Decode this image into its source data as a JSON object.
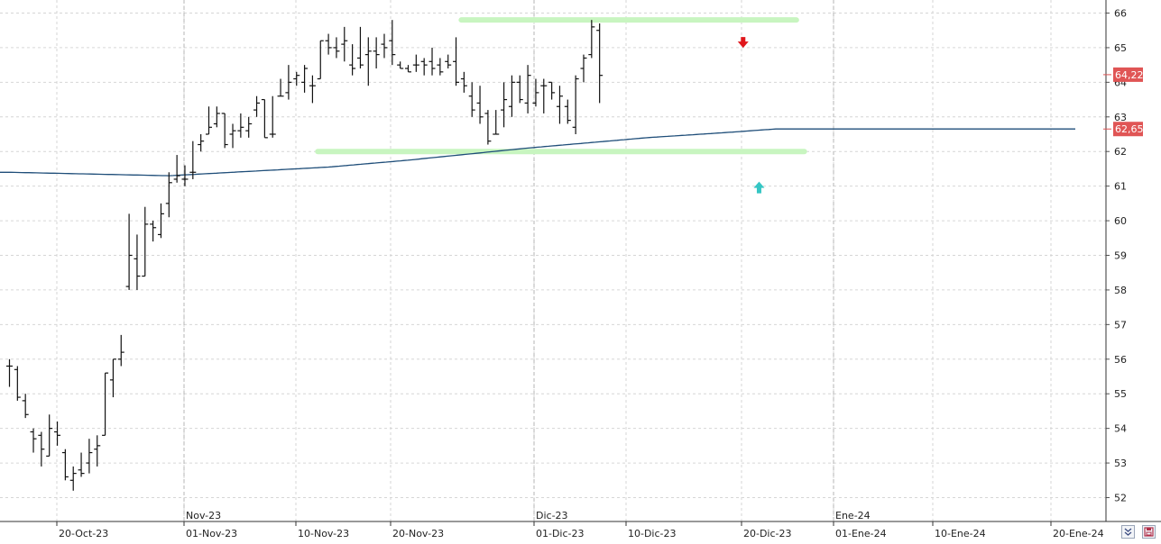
{
  "chart_data": {
    "type": "ohlc",
    "y_axis": {
      "position": "right",
      "range": [
        51.6,
        66.3
      ],
      "ticks": [
        "52",
        "53",
        "54",
        "55",
        "56",
        "57",
        "58",
        "59",
        "60",
        "61",
        "62",
        "63",
        "64",
        "65",
        "66"
      ]
    },
    "x_axis": {
      "date_ticks": [
        "20-Oct-23",
        "01-Nov-23",
        "10-Nov-23",
        "20-Nov-23",
        "01-Dic-23",
        "10-Dic-23",
        "20-Dic-23",
        "01-Ene-24",
        "10-Ene-24",
        "20-Ene-24"
      ],
      "month_labels": [
        "Nov-23",
        "Dic-23",
        "Ene-24"
      ]
    },
    "ohlc": [
      [
        55.8,
        56.0,
        55.2,
        55.8
      ],
      [
        55.7,
        55.8,
        54.8,
        54.9
      ],
      [
        54.8,
        55.0,
        54.3,
        54.4
      ],
      [
        53.9,
        54.0,
        53.3,
        53.7
      ],
      [
        53.8,
        53.9,
        52.9,
        53.4
      ],
      [
        53.2,
        54.4,
        53.2,
        54.0
      ],
      [
        53.9,
        54.2,
        53.5,
        53.8
      ],
      [
        53.3,
        53.4,
        52.5,
        52.6
      ],
      [
        52.5,
        52.9,
        52.2,
        52.7
      ],
      [
        52.8,
        53.3,
        52.6,
        52.7
      ],
      [
        53.0,
        53.7,
        52.7,
        53.3
      ],
      [
        53.4,
        53.8,
        52.9,
        53.5
      ],
      [
        53.8,
        55.6,
        53.8,
        55.6
      ],
      [
        55.4,
        56.0,
        54.9,
        56.0
      ],
      [
        56.0,
        56.7,
        55.8,
        56.2
      ],
      [
        58.1,
        60.2,
        58.0,
        59.0
      ],
      [
        58.9,
        59.6,
        58.0,
        58.4
      ],
      [
        58.4,
        60.4,
        58.4,
        59.9
      ],
      [
        59.9,
        60.0,
        59.4,
        59.8
      ],
      [
        59.6,
        60.5,
        59.5,
        60.2
      ],
      [
        60.5,
        61.4,
        60.1,
        61.1
      ],
      [
        61.2,
        61.9,
        61.1,
        61.3
      ],
      [
        61.2,
        61.6,
        61.0,
        61.2
      ],
      [
        61.4,
        62.3,
        61.2,
        61.4
      ],
      [
        62.2,
        62.5,
        62.0,
        62.3
      ],
      [
        62.5,
        63.3,
        62.5,
        62.7
      ],
      [
        62.8,
        63.3,
        62.7,
        63.1
      ],
      [
        63.1,
        63.1,
        62.1,
        62.2
      ],
      [
        62.5,
        62.8,
        62.1,
        62.6
      ],
      [
        62.6,
        63.1,
        62.4,
        62.7
      ],
      [
        62.6,
        63.0,
        62.4,
        62.8
      ],
      [
        63.2,
        63.6,
        63.0,
        63.4
      ],
      [
        63.5,
        63.5,
        62.4,
        62.4
      ],
      [
        62.5,
        63.6,
        62.4,
        62.5
      ],
      [
        63.6,
        64.1,
        63.6,
        63.6
      ],
      [
        63.7,
        64.5,
        63.5,
        64.0
      ],
      [
        64.1,
        64.3,
        63.9,
        64.2
      ],
      [
        64.0,
        64.5,
        63.7,
        64.4
      ],
      [
        63.9,
        64.2,
        63.4,
        63.9
      ],
      [
        64.1,
        65.2,
        64.1,
        65.2
      ],
      [
        65.2,
        65.4,
        64.8,
        65.0
      ],
      [
        65.0,
        65.3,
        64.7,
        64.9
      ],
      [
        65.1,
        65.6,
        64.6,
        65.2
      ],
      [
        64.5,
        65.1,
        64.2,
        64.4
      ],
      [
        64.7,
        65.6,
        64.4,
        64.5
      ],
      [
        64.8,
        65.3,
        63.9,
        64.9
      ],
      [
        64.9,
        65.3,
        64.4,
        64.8
      ],
      [
        65.1,
        65.4,
        64.7,
        65.0
      ],
      [
        65.2,
        65.8,
        64.5,
        64.8
      ],
      [
        64.5,
        64.6,
        64.4,
        64.4
      ],
      [
        64.4,
        64.5,
        64.3,
        64.3
      ],
      [
        64.5,
        64.8,
        64.3,
        64.5
      ],
      [
        64.6,
        64.7,
        64.2,
        64.5
      ],
      [
        64.6,
        65.0,
        64.2,
        64.4
      ],
      [
        64.5,
        64.7,
        64.2,
        64.3
      ],
      [
        64.6,
        64.8,
        64.4,
        64.5
      ],
      [
        64.6,
        65.3,
        63.9,
        64.0
      ],
      [
        64.1,
        64.3,
        63.7,
        63.9
      ],
      [
        63.6,
        64.0,
        63.0,
        63.2
      ],
      [
        63.4,
        63.9,
        62.8,
        63.0
      ],
      [
        63.1,
        63.2,
        62.2,
        62.3
      ],
      [
        62.5,
        63.2,
        62.5,
        62.5
      ],
      [
        63.2,
        64.0,
        62.7,
        63.5
      ],
      [
        63.3,
        64.2,
        63.0,
        64.0
      ],
      [
        64.0,
        64.2,
        63.4,
        63.5
      ],
      [
        63.4,
        64.5,
        63.1,
        64.2
      ],
      [
        63.4,
        64.1,
        63.3,
        63.7
      ],
      [
        63.9,
        64.1,
        63.1,
        63.9
      ],
      [
        64.0,
        64.0,
        63.5,
        63.7
      ],
      [
        63.3,
        63.9,
        62.8,
        63.6
      ],
      [
        63.3,
        63.5,
        62.8,
        62.9
      ],
      [
        62.7,
        64.2,
        62.5,
        64.1
      ],
      [
        64.4,
        64.8,
        64.0,
        64.7
      ],
      [
        64.8,
        65.8,
        64.7,
        65.6
      ],
      [
        65.5,
        65.7,
        63.4,
        64.2
      ]
    ],
    "moving_average": {
      "color": "#1f4e79",
      "points": [
        [
          0,
          61.4
        ],
        [
          20,
          61.3
        ],
        [
          40,
          61.55
        ],
        [
          50,
          61.75
        ],
        [
          65,
          62.1
        ],
        [
          80,
          62.4
        ],
        [
          90,
          62.55
        ],
        [
          96,
          62.65
        ]
      ]
    },
    "horizontal_lines": [
      {
        "value": 65.8,
        "from_bar": 57,
        "to_bar": 98,
        "color": "#c8f5c0"
      },
      {
        "value": 62.0,
        "from_bar": 39,
        "to_bar": 99,
        "color": "#c8f5c0"
      }
    ],
    "markers": [
      {
        "type": "arrow-down",
        "bar": 92,
        "value": 65.1,
        "color": "#e0161b"
      },
      {
        "type": "arrow-up",
        "bar": 94,
        "value": 61.0,
        "color": "#35c6c4"
      }
    ],
    "price_tags": [
      {
        "label": "64,22",
        "value": 64.22,
        "color": "#e05555"
      },
      {
        "label": "62,65",
        "value": 62.65,
        "color": "#e05555"
      }
    ]
  },
  "toolbar": {
    "scroll_button_icon": "double-chevron-down-icon",
    "save_button_icon": "floppy-disk-icon"
  }
}
